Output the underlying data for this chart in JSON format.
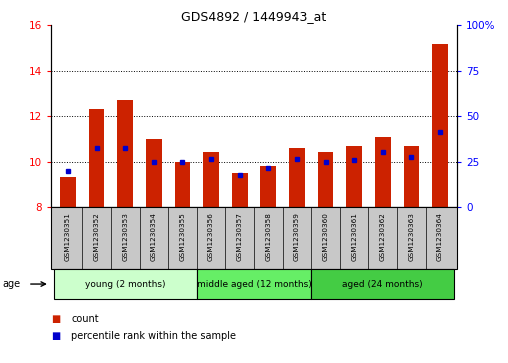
{
  "title": "GDS4892 / 1449943_at",
  "samples": [
    "GSM1230351",
    "GSM1230352",
    "GSM1230353",
    "GSM1230354",
    "GSM1230355",
    "GSM1230356",
    "GSM1230357",
    "GSM1230358",
    "GSM1230359",
    "GSM1230360",
    "GSM1230361",
    "GSM1230362",
    "GSM1230363",
    "GSM1230364"
  ],
  "count_values": [
    9.3,
    12.3,
    12.7,
    11.0,
    10.0,
    10.4,
    9.5,
    9.8,
    10.6,
    10.4,
    10.7,
    11.1,
    10.7,
    15.2
  ],
  "percentile_values": [
    9.6,
    10.6,
    10.6,
    10.0,
    10.0,
    10.1,
    9.4,
    9.7,
    10.1,
    10.0,
    10.05,
    10.4,
    10.2,
    11.3
  ],
  "ylim_left": [
    8,
    16
  ],
  "ylim_right": [
    0,
    100
  ],
  "yticks_left": [
    8,
    10,
    12,
    14,
    16
  ],
  "yticks_right": [
    0,
    25,
    50,
    75,
    100
  ],
  "groups": [
    {
      "label": "young (2 months)",
      "indices": [
        0,
        1,
        2,
        3,
        4
      ],
      "color": "#ccffcc"
    },
    {
      "label": "middle aged (12 months)",
      "indices": [
        5,
        6,
        7,
        8
      ],
      "color": "#66ee66"
    },
    {
      "label": "aged (24 months)",
      "indices": [
        9,
        10,
        11,
        12,
        13
      ],
      "color": "#44cc44"
    }
  ],
  "bar_color": "#cc2200",
  "percentile_color": "#0000cc",
  "bar_width": 0.55,
  "background_color": "#ffffff",
  "tick_area_color": "#c8c8c8",
  "age_label": "age",
  "legend_count": "count",
  "legend_percentile": "percentile rank within the sample",
  "base_value": 8.0,
  "grid_yticks": [
    10,
    12,
    14
  ]
}
